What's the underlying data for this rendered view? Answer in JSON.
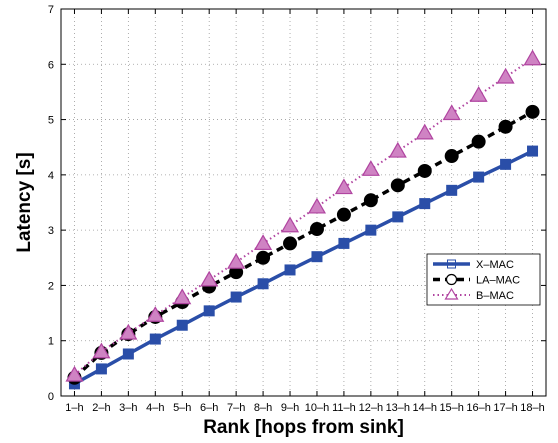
{
  "chart_data": {
    "type": "line",
    "xlabel": "Rank [hops from sink]",
    "ylabel": "Latency [s]",
    "categories": [
      "1–h",
      "2–h",
      "3–h",
      "4–h",
      "5–h",
      "6–h",
      "7–h",
      "8–h",
      "9–h",
      "10–h",
      "11–h",
      "12–h",
      "13–h",
      "14–h",
      "15–h",
      "16–h",
      "17–h",
      "18–h"
    ],
    "ylim": [
      0,
      7
    ],
    "yticks": [
      0,
      1,
      2,
      3,
      4,
      5,
      6,
      7
    ],
    "grid": true,
    "legend_position": "lower-right",
    "series": [
      {
        "name": "X–MAC",
        "color": "#2a4ea8",
        "marker": "square",
        "line": "solid",
        "values": [
          0.22,
          0.49,
          0.76,
          1.03,
          1.28,
          1.54,
          1.79,
          2.03,
          2.28,
          2.52,
          2.76,
          3.0,
          3.24,
          3.48,
          3.72,
          3.96,
          4.19,
          4.43
        ]
      },
      {
        "name": "LA–MAC",
        "color": "#000000",
        "marker": "circle",
        "line": "dashed",
        "values": [
          0.33,
          0.78,
          1.12,
          1.43,
          1.7,
          1.98,
          2.24,
          2.5,
          2.76,
          3.02,
          3.28,
          3.54,
          3.81,
          4.07,
          4.34,
          4.6,
          4.87,
          5.14
        ]
      },
      {
        "name": "B–MAC",
        "color": "#b044a0",
        "marker": "triangle",
        "line": "dotted",
        "values": [
          0.38,
          0.8,
          1.14,
          1.46,
          1.78,
          2.1,
          2.42,
          2.76,
          3.08,
          3.42,
          3.77,
          4.1,
          4.43,
          4.76,
          5.11,
          5.44,
          5.77,
          6.1
        ]
      }
    ]
  }
}
